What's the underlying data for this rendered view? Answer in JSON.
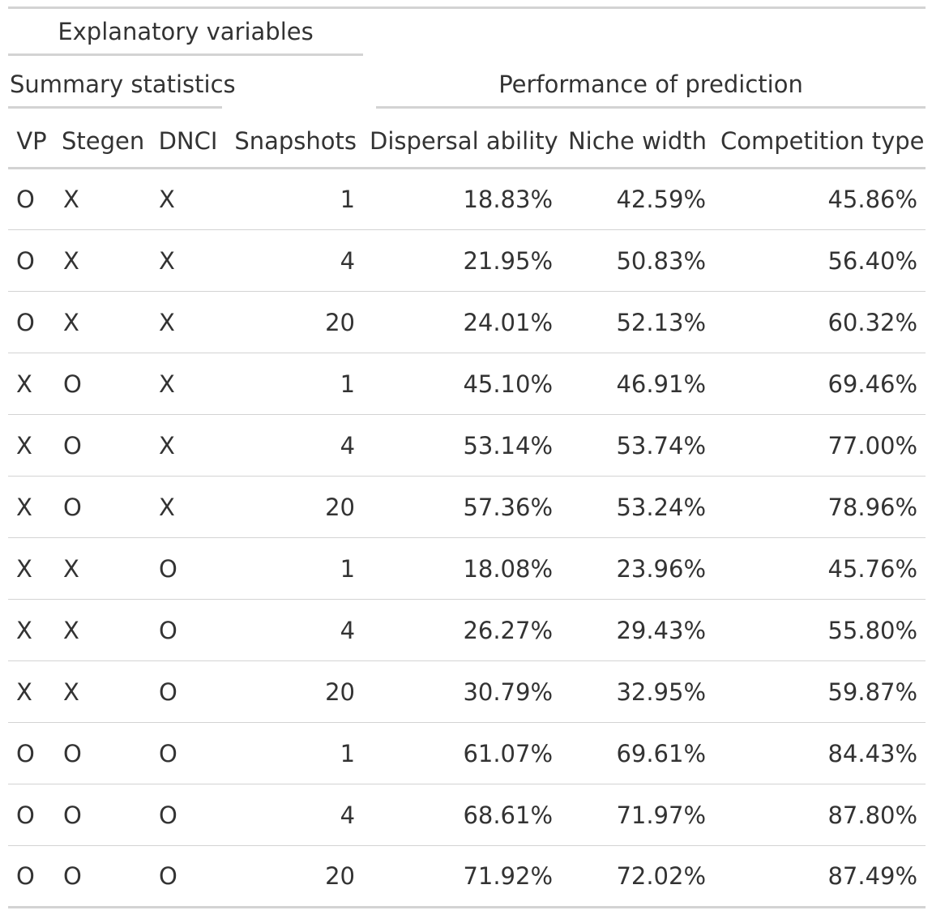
{
  "table": {
    "spanners": {
      "explanatory": "Explanatory variables",
      "summary": "Summary statistics",
      "performance": "Performance of prediction"
    },
    "columns": [
      "VP",
      "Stegen",
      "DNCI",
      "Snapshots",
      "Dispersal ability",
      "Niche width",
      "Competition type"
    ],
    "rows": [
      [
        "O",
        "X",
        "X",
        "1",
        "18.83%",
        "42.59%",
        "45.86%"
      ],
      [
        "O",
        "X",
        "X",
        "4",
        "21.95%",
        "50.83%",
        "56.40%"
      ],
      [
        "O",
        "X",
        "X",
        "20",
        "24.01%",
        "52.13%",
        "60.32%"
      ],
      [
        "X",
        "O",
        "X",
        "1",
        "45.10%",
        "46.91%",
        "69.46%"
      ],
      [
        "X",
        "O",
        "X",
        "4",
        "53.14%",
        "53.74%",
        "77.00%"
      ],
      [
        "X",
        "O",
        "X",
        "20",
        "57.36%",
        "53.24%",
        "78.96%"
      ],
      [
        "X",
        "X",
        "O",
        "1",
        "18.08%",
        "23.96%",
        "45.76%"
      ],
      [
        "X",
        "X",
        "O",
        "4",
        "26.27%",
        "29.43%",
        "55.80%"
      ],
      [
        "X",
        "X",
        "O",
        "20",
        "30.79%",
        "32.95%",
        "59.87%"
      ],
      [
        "O",
        "O",
        "O",
        "1",
        "61.07%",
        "69.61%",
        "84.43%"
      ],
      [
        "O",
        "O",
        "O",
        "4",
        "68.61%",
        "71.97%",
        "87.80%"
      ],
      [
        "O",
        "O",
        "O",
        "20",
        "71.92%",
        "72.02%",
        "87.49%"
      ]
    ]
  }
}
